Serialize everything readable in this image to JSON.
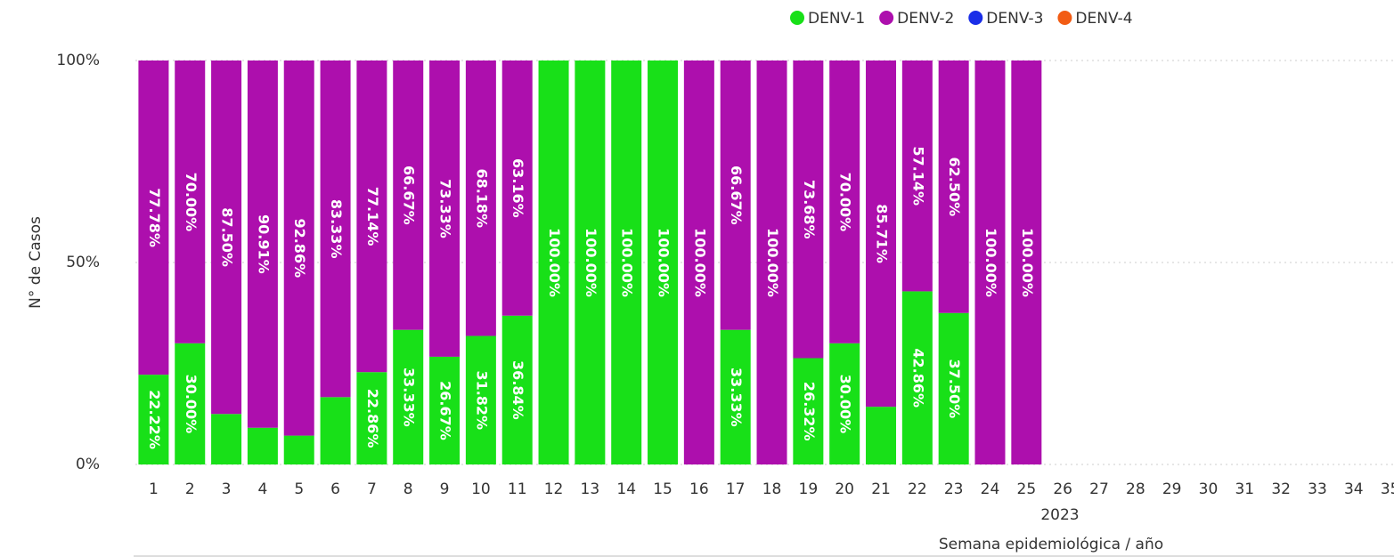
{
  "chart_data": {
    "type": "stacked_bar_percent",
    "y_label": "N° de Casos",
    "x_label": "Semana epidemiológica / año",
    "x_group_label": "2023",
    "categories": [
      "1",
      "2",
      "3",
      "4",
      "5",
      "6",
      "7",
      "8",
      "9",
      "10",
      "11",
      "12",
      "13",
      "14",
      "15",
      "16",
      "17",
      "18",
      "19",
      "20",
      "21",
      "22",
      "23",
      "24",
      "25",
      "26",
      "27",
      "28",
      "29",
      "30",
      "31",
      "32",
      "33",
      "34",
      "35"
    ],
    "ylim": [
      0,
      100
    ],
    "yticks": [
      {
        "value": 0,
        "label": "0%"
      },
      {
        "value": 50,
        "label": "50%"
      },
      {
        "value": 100,
        "label": "100%"
      }
    ],
    "grid": true,
    "legend": "top-right",
    "series": [
      {
        "name": "DENV-1",
        "color": "#18e018",
        "values": [
          22.22,
          30,
          12.5,
          9.09,
          7.14,
          16.67,
          22.86,
          33.33,
          26.67,
          31.82,
          36.84,
          100,
          100,
          100,
          100,
          0,
          33.33,
          0,
          26.32,
          30,
          14.29,
          42.86,
          37.5,
          0,
          0,
          null,
          null,
          null,
          null,
          null,
          null,
          null,
          null,
          null,
          null
        ],
        "value_labels": [
          "22.22%",
          "30.00%",
          null,
          null,
          null,
          null,
          "22.86%",
          "33.33%",
          "26.67%",
          "31.82%",
          "36.84%",
          "100.00%",
          "100.00%",
          "100.00%",
          "100.00%",
          null,
          "33.33%",
          null,
          "26.32%",
          "30.00%",
          null,
          "42.86%",
          "37.50%",
          null,
          null,
          null,
          null,
          null,
          null,
          null,
          null,
          null,
          null,
          null,
          null
        ]
      },
      {
        "name": "DENV-2",
        "color": "#ad0fad",
        "values": [
          77.78,
          70,
          87.5,
          90.91,
          92.86,
          83.33,
          77.14,
          66.67,
          73.33,
          68.18,
          63.16,
          0,
          0,
          0,
          0,
          100,
          66.67,
          100,
          73.68,
          70,
          85.71,
          57.14,
          62.5,
          100,
          100,
          null,
          null,
          null,
          null,
          null,
          null,
          null,
          null,
          null,
          null
        ],
        "value_labels": [
          "77.78%",
          "70.00%",
          "87.50%",
          "90.91%",
          "92.86%",
          "83.33%",
          "77.14%",
          "66.67%",
          "73.33%",
          "68.18%",
          "63.16%",
          null,
          null,
          null,
          null,
          "100.00%",
          "66.67%",
          "100.00%",
          "73.68%",
          "70.00%",
          "85.71%",
          "57.14%",
          "62.50%",
          "100.00%",
          "100.00%",
          null,
          null,
          null,
          null,
          null,
          null,
          null,
          null,
          null,
          null
        ]
      },
      {
        "name": "DENV-3",
        "color": "#1a2ee8",
        "values": [
          0,
          0,
          0,
          0,
          0,
          0,
          0,
          0,
          0,
          0,
          0,
          0,
          0,
          0,
          0,
          0,
          0,
          0,
          0,
          0,
          0,
          0,
          0,
          0,
          0,
          null,
          null,
          null,
          null,
          null,
          null,
          null,
          null,
          null,
          null
        ]
      },
      {
        "name": "DENV-4",
        "color": "#f25c14",
        "values": [
          0,
          0,
          0,
          0,
          0,
          0,
          0,
          0,
          0,
          0,
          0,
          0,
          0,
          0,
          0,
          0,
          0,
          0,
          0,
          0,
          0,
          0,
          0,
          0,
          0,
          null,
          null,
          null,
          null,
          null,
          null,
          null,
          null,
          null,
          null
        ]
      }
    ]
  }
}
